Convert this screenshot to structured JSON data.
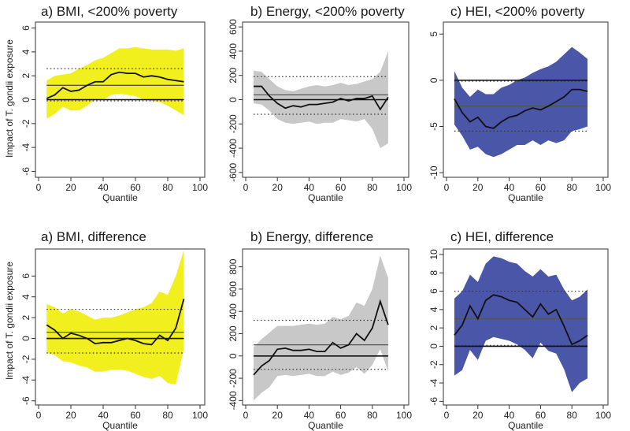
{
  "figure": {
    "y_axis_title": "Impact of T. gondii exposure"
  },
  "chart_data": [
    {
      "type": "line",
      "title": "a) BMI, <200% poverty",
      "xlabel": "Quantile",
      "ylabel": "Impact of T. gondii exposure",
      "xlim": [
        0,
        100
      ],
      "ylim": [
        -6.5,
        6.5
      ],
      "xticks": [
        0,
        20,
        40,
        60,
        80,
        100
      ],
      "yticks": [
        -6,
        -4,
        -2,
        0,
        2,
        4,
        6
      ],
      "band_color": "#f2ef1e",
      "x": [
        5,
        10,
        15,
        20,
        25,
        30,
        35,
        40,
        45,
        50,
        55,
        60,
        65,
        70,
        75,
        80,
        85,
        90
      ],
      "estimate": [
        0.1,
        0.4,
        1.0,
        0.7,
        0.8,
        1.2,
        1.5,
        1.5,
        2.1,
        2.3,
        2.2,
        2.2,
        1.9,
        2.0,
        1.9,
        1.7,
        1.6,
        1.5
      ],
      "ci_upper": [
        1.6,
        2.0,
        2.1,
        2.2,
        2.6,
        2.9,
        3.3,
        3.5,
        3.9,
        4.3,
        4.3,
        4.4,
        4.3,
        4.2,
        4.2,
        4.2,
        4.1,
        4.3
      ],
      "ci_lower": [
        -1.6,
        -1.2,
        -0.6,
        -0.9,
        -0.9,
        -0.5,
        0.0,
        0.0,
        0.4,
        0.5,
        0.4,
        0.3,
        0.0,
        -0.1,
        -0.2,
        -0.5,
        -0.9,
        -1.3
      ],
      "ref_lines": [
        {
          "value": 0,
          "style": "solid"
        },
        {
          "value": 1.2,
          "style": "solid"
        },
        {
          "value": 2.6,
          "style": "dotted"
        },
        {
          "value": -0.1,
          "style": "dotted"
        }
      ]
    },
    {
      "type": "line",
      "title": "b) Energy, <200% poverty",
      "xlabel": "Quantile",
      "ylabel": "",
      "xlim": [
        0,
        100
      ],
      "ylim": [
        -640,
        640
      ],
      "xticks": [
        0,
        20,
        40,
        60,
        80,
        100
      ],
      "yticks": [
        -600,
        -400,
        -200,
        0,
        200,
        400,
        600
      ],
      "band_color": "#c8c8c8",
      "x": [
        5,
        10,
        15,
        20,
        25,
        30,
        35,
        40,
        45,
        50,
        55,
        60,
        65,
        70,
        75,
        80,
        85,
        90
      ],
      "estimate": [
        110,
        110,
        30,
        -30,
        -70,
        -50,
        -60,
        -40,
        -40,
        -30,
        -20,
        10,
        -10,
        10,
        10,
        30,
        -80,
        20
      ],
      "ci_upper": [
        240,
        230,
        170,
        110,
        80,
        70,
        90,
        110,
        120,
        110,
        120,
        140,
        120,
        130,
        150,
        170,
        230,
        400
      ],
      "ci_lower": [
        -30,
        -40,
        -90,
        -160,
        -190,
        -200,
        -190,
        -180,
        -200,
        -190,
        -190,
        -160,
        -170,
        -180,
        -160,
        -240,
        -400,
        -360
      ],
      "ref_lines": [
        {
          "value": 0,
          "style": "solid"
        },
        {
          "value": 40,
          "style": "solid"
        },
        {
          "value": 190,
          "style": "dotted"
        },
        {
          "value": -120,
          "style": "dotted"
        }
      ]
    },
    {
      "type": "line",
      "title": "c) HEI, <200% poverty",
      "xlabel": "Quantile",
      "ylabel": "",
      "xlim": [
        0,
        100
      ],
      "ylim": [
        -10.5,
        6.3
      ],
      "xticks": [
        0,
        20,
        40,
        60,
        80,
        100
      ],
      "yticks": [
        -10,
        -5,
        0,
        5
      ],
      "band_color": "#4a57a8",
      "x": [
        5,
        10,
        15,
        20,
        25,
        30,
        35,
        40,
        45,
        50,
        55,
        60,
        65,
        70,
        75,
        80,
        85,
        90
      ],
      "estimate": [
        -2.0,
        -3.5,
        -4.5,
        -4.0,
        -5.0,
        -5.2,
        -4.5,
        -4.0,
        -3.8,
        -3.3,
        -3.0,
        -3.2,
        -2.8,
        -2.3,
        -1.8,
        -1.0,
        -1.0,
        -1.2
      ],
      "ci_upper": [
        1.0,
        -0.8,
        -1.8,
        -1.0,
        -1.5,
        -1.5,
        -0.8,
        -0.5,
        0.0,
        0.3,
        0.8,
        1.2,
        1.5,
        2.0,
        2.8,
        3.6,
        3.0,
        2.3
      ],
      "ci_lower": [
        -4.8,
        -6.0,
        -7.5,
        -7.2,
        -8.0,
        -8.3,
        -8.0,
        -7.5,
        -7.0,
        -7.0,
        -6.5,
        -7.0,
        -6.5,
        -6.8,
        -6.5,
        -5.5,
        -5.3,
        -5.0
      ],
      "ref_lines": [
        {
          "value": 0,
          "style": "solid"
        },
        {
          "value": -2.8,
          "style": "solid"
        },
        {
          "value": -0.1,
          "style": "dotted"
        },
        {
          "value": -5.5,
          "style": "dotted"
        }
      ]
    },
    {
      "type": "line",
      "title": "a) BMI, difference",
      "xlabel": "Quantile",
      "ylabel": "Impact of T. gondii exposure",
      "xlim": [
        0,
        100
      ],
      "ylim": [
        -6.4,
        8.6
      ],
      "xticks": [
        0,
        20,
        40,
        60,
        80,
        100
      ],
      "yticks": [
        -6,
        -4,
        -2,
        0,
        2,
        4,
        6
      ],
      "band_color": "#f2ef1e",
      "x": [
        5,
        10,
        15,
        20,
        25,
        30,
        35,
        40,
        45,
        50,
        55,
        60,
        65,
        70,
        75,
        80,
        85,
        90
      ],
      "estimate": [
        1.3,
        0.8,
        0.0,
        0.5,
        0.3,
        0.0,
        -0.5,
        -0.4,
        -0.4,
        -0.2,
        0.0,
        -0.2,
        -0.5,
        -0.6,
        0.3,
        -0.2,
        1.0,
        3.8
      ],
      "ci_upper": [
        3.3,
        3.0,
        2.4,
        2.8,
        2.6,
        2.2,
        1.8,
        2.0,
        2.0,
        2.2,
        2.5,
        2.8,
        3.0,
        3.4,
        4.5,
        4.2,
        6.0,
        8.5
      ],
      "ci_lower": [
        -1.4,
        -1.6,
        -2.2,
        -2.3,
        -2.6,
        -2.8,
        -3.2,
        -3.2,
        -3.0,
        -3.0,
        -3.1,
        -3.4,
        -3.7,
        -3.9,
        -3.6,
        -4.3,
        -4.4,
        -1.0
      ],
      "ref_lines": [
        {
          "value": 0,
          "style": "solid"
        },
        {
          "value": 0.6,
          "style": "solid"
        },
        {
          "value": 2.8,
          "style": "dotted"
        },
        {
          "value": -1.4,
          "style": "dotted"
        }
      ]
    },
    {
      "type": "line",
      "title": "b) Energy, difference",
      "xlabel": "Quantile",
      "ylabel": "",
      "xlim": [
        0,
        100
      ],
      "ylim": [
        -440,
        960
      ],
      "xticks": [
        0,
        20,
        40,
        60,
        80,
        100
      ],
      "yticks": [
        -400,
        -200,
        0,
        200,
        400,
        600,
        800
      ],
      "band_color": "#c8c8c8",
      "x": [
        5,
        10,
        15,
        20,
        25,
        30,
        35,
        40,
        45,
        50,
        55,
        60,
        65,
        70,
        75,
        80,
        85,
        90
      ],
      "estimate": [
        -170,
        -90,
        -40,
        60,
        70,
        50,
        50,
        60,
        40,
        40,
        120,
        70,
        100,
        200,
        140,
        250,
        490,
        280
      ],
      "ci_upper": [
        80,
        150,
        210,
        270,
        270,
        270,
        280,
        290,
        280,
        290,
        350,
        330,
        360,
        480,
        450,
        600,
        900,
        700
      ],
      "ci_lower": [
        -400,
        -330,
        -280,
        -180,
        -170,
        -180,
        -170,
        -160,
        -180,
        -180,
        -140,
        -170,
        -150,
        -100,
        -160,
        -80,
        60,
        -140
      ],
      "ref_lines": [
        {
          "value": 0,
          "style": "solid"
        },
        {
          "value": 100,
          "style": "solid"
        },
        {
          "value": 320,
          "style": "dotted"
        },
        {
          "value": -120,
          "style": "dotted"
        }
      ]
    },
    {
      "type": "line",
      "title": "c) HEI, difference",
      "xlabel": "Quantile",
      "ylabel": "",
      "xlim": [
        0,
        100
      ],
      "ylim": [
        -6.4,
        10.6
      ],
      "xticks": [
        0,
        20,
        40,
        60,
        80,
        100
      ],
      "yticks": [
        -6,
        -4,
        -2,
        0,
        2,
        4,
        6,
        8,
        10
      ],
      "band_color": "#4a57a8",
      "x": [
        5,
        10,
        15,
        20,
        25,
        30,
        35,
        40,
        45,
        50,
        55,
        60,
        65,
        70,
        75,
        80,
        85,
        90
      ],
      "estimate": [
        1.2,
        2.3,
        4.4,
        3.0,
        5.0,
        5.6,
        5.4,
        5.0,
        4.8,
        4.0,
        3.2,
        4.6,
        3.5,
        4.0,
        2.2,
        0.2,
        0.6,
        1.2
      ],
      "ci_upper": [
        5.2,
        6.0,
        7.8,
        7.0,
        9.0,
        9.8,
        9.6,
        9.2,
        9.0,
        8.2,
        7.6,
        8.4,
        7.6,
        7.8,
        6.2,
        5.0,
        5.4,
        6.2
      ],
      "ci_lower": [
        -3.2,
        -2.6,
        -0.4,
        -1.5,
        0.6,
        1.0,
        0.8,
        0.6,
        0.2,
        -0.4,
        -1.3,
        0.4,
        -0.5,
        -0.8,
        -2.5,
        -5.0,
        -4.0,
        -3.5
      ],
      "ref_lines": [
        {
          "value": 0,
          "style": "solid"
        },
        {
          "value": 3.0,
          "style": "solid"
        },
        {
          "value": 6.0,
          "style": "dotted"
        },
        {
          "value": 0.1,
          "style": "dotted"
        }
      ]
    }
  ]
}
